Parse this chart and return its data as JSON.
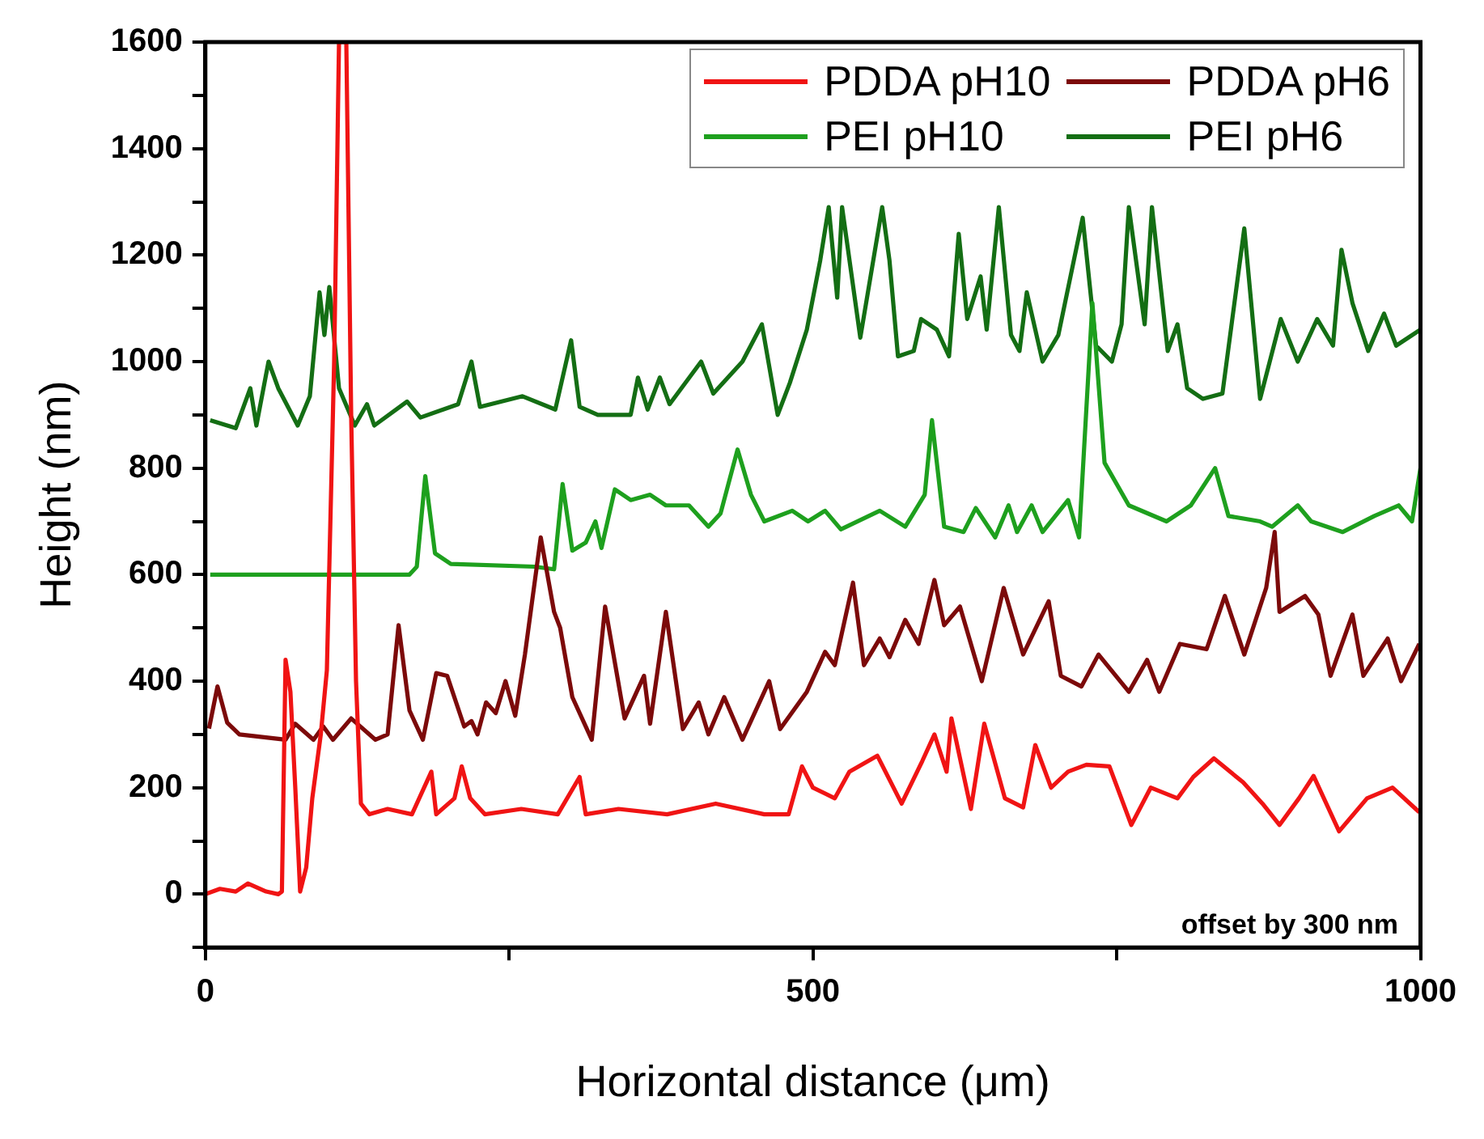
{
  "chart_data": {
    "type": "line",
    "xlabel": "Horizontal distance (μm)",
    "ylabel": "Height (nm)",
    "xlim": [
      0,
      1000
    ],
    "xticks": [
      0,
      {
        "value": 250,
        "label": null
      },
      500,
      {
        "value": 750,
        "label": null
      },
      1000
    ],
    "ylim": [
      -100,
      1600
    ],
    "yticks": [
      {
        "value": -100,
        "label": null
      },
      0,
      {
        "value": 100,
        "label": null
      },
      200,
      {
        "value": 300,
        "label": null
      },
      400,
      {
        "value": 500,
        "label": null
      },
      600,
      {
        "value": 700,
        "label": null
      },
      800,
      {
        "value": 900,
        "label": null
      },
      1000,
      {
        "value": 1100,
        "label": null
      },
      1200,
      {
        "value": 1300,
        "label": null
      },
      1400,
      {
        "value": 1500,
        "label": null
      },
      1600
    ],
    "grid": false,
    "legend": "top right",
    "marker": "none",
    "line_style": "solid",
    "annotations": [
      "offset by 300 nm"
    ],
    "series": [
      {
        "name": "PDDA pH10",
        "color": "#f01414",
        "x": [
          0,
          12,
          25,
          35,
          50,
          60,
          63,
          66,
          70,
          74,
          78,
          83,
          88,
          95,
          100,
          106,
          110,
          116,
          120,
          124,
          128,
          135,
          150,
          170,
          186,
          190,
          205,
          211,
          218,
          230,
          260,
          290,
          308,
          313,
          340,
          380,
          420,
          460,
          480,
          491,
          500,
          518,
          530,
          553,
          573,
          590,
          600,
          610,
          614,
          630,
          641,
          658,
          673,
          683,
          696,
          710,
          725,
          744,
          762,
          778,
          800,
          813,
          830,
          854,
          870,
          884,
          900,
          912,
          933,
          956,
          977,
          999
        ],
        "values": [
          0,
          10,
          5,
          20,
          5,
          0,
          5,
          440,
          380,
          200,
          5,
          50,
          180,
          300,
          420,
          1000,
          1600,
          1600,
          900,
          400,
          170,
          150,
          160,
          150,
          230,
          150,
          180,
          240,
          180,
          150,
          160,
          150,
          220,
          150,
          160,
          150,
          170,
          150,
          150,
          240,
          200,
          180,
          230,
          260,
          170,
          250,
          300,
          230,
          330,
          160,
          320,
          180,
          163,
          280,
          200,
          230,
          243,
          240,
          130,
          200,
          180,
          220,
          255,
          210,
          170,
          130,
          180,
          222,
          118,
          180,
          200,
          154
        ]
      },
      {
        "name": "PDDA pH6",
        "color": "#7c0a0a",
        "x": [
          3,
          10,
          18,
          28,
          66,
          74,
          89,
          97,
          105,
          120,
          140,
          150,
          159,
          168,
          179,
          190,
          199,
          213,
          219,
          224,
          231,
          239,
          247,
          255,
          263,
          276,
          287,
          292,
          302,
          318,
          329,
          345,
          361,
          366,
          379,
          393,
          406,
          414,
          427,
          442,
          464,
          473,
          495,
          510,
          518,
          533,
          542,
          555,
          563,
          576,
          587,
          600,
          608,
          621,
          639,
          657,
          673,
          694,
          704,
          721,
          735,
          760,
          775,
          785,
          802,
          824,
          839,
          855,
          873,
          880,
          884,
          905,
          916,
          926,
          944,
          953,
          973,
          984,
          999
        ],
        "values": [
          311,
          390,
          322,
          300,
          290,
          320,
          290,
          315,
          290,
          330,
          290,
          300,
          505,
          345,
          290,
          415,
          410,
          315,
          325,
          300,
          360,
          340,
          400,
          335,
          450,
          670,
          530,
          500,
          370,
          290,
          540,
          330,
          410,
          320,
          530,
          310,
          360,
          300,
          370,
          290,
          400,
          310,
          380,
          455,
          430,
          585,
          430,
          480,
          445,
          515,
          470,
          590,
          505,
          540,
          400,
          575,
          450,
          550,
          410,
          390,
          450,
          380,
          440,
          380,
          470,
          460,
          560,
          450,
          575,
          680,
          530,
          560,
          525,
          410,
          525,
          410,
          480,
          400,
          470
        ]
      },
      {
        "name": "PEI pH10",
        "color": "#1ea01e",
        "x": [
          4,
          168,
          174,
          181,
          189,
          202,
          271,
          287,
          294,
          302,
          313,
          321,
          326,
          337,
          350,
          366,
          379,
          398,
          414,
          424,
          438,
          449,
          460,
          483,
          496,
          510,
          523,
          555,
          576,
          592,
          598,
          608,
          624,
          634,
          650,
          661,
          668,
          680,
          689,
          710,
          719,
          730,
          740,
          760,
          791,
          811,
          831,
          842,
          868,
          878,
          899,
          910,
          936,
          962,
          982,
          993,
          1000
        ],
        "values": [
          600,
          600,
          615,
          785,
          640,
          620,
          615,
          610,
          770,
          645,
          660,
          700,
          650,
          760,
          740,
          750,
          730,
          730,
          690,
          715,
          835,
          750,
          700,
          720,
          700,
          720,
          685,
          720,
          690,
          750,
          890,
          690,
          680,
          725,
          670,
          730,
          680,
          730,
          680,
          740,
          670,
          1110,
          810,
          730,
          700,
          730,
          800,
          710,
          700,
          690,
          730,
          700,
          680,
          710,
          730,
          700,
          800
        ]
      },
      {
        "name": "PEI pH6",
        "color": "#146e14",
        "x": [
          4,
          25,
          37,
          42,
          52,
          60,
          76,
          86,
          94,
          98,
          102,
          110,
          123,
          133,
          139,
          166,
          177,
          208,
          219,
          226,
          261,
          288,
          301,
          308,
          323,
          350,
          356,
          364,
          374,
          382,
          408,
          418,
          442,
          458,
          471,
          481,
          495,
          506,
          513,
          520,
          524,
          539,
          557,
          563,
          570,
          583,
          589,
          602,
          612,
          620,
          627,
          638,
          643,
          653,
          663,
          670,
          676,
          689,
          702,
          722,
          733,
          746,
          754,
          760,
          773,
          779,
          792,
          800,
          808,
          821,
          837,
          855,
          868,
          885,
          899,
          915,
          928,
          935,
          944,
          957,
          970,
          980,
          1000
        ],
        "values": [
          890,
          875,
          950,
          880,
          1000,
          950,
          880,
          935,
          1130,
          1050,
          1140,
          950,
          880,
          920,
          880,
          925,
          895,
          920,
          1000,
          915,
          935,
          910,
          1040,
          915,
          900,
          900,
          970,
          910,
          970,
          920,
          1000,
          940,
          1000,
          1070,
          900,
          960,
          1060,
          1190,
          1290,
          1120,
          1290,
          1045,
          1290,
          1190,
          1010,
          1020,
          1080,
          1060,
          1010,
          1240,
          1080,
          1160,
          1060,
          1290,
          1050,
          1020,
          1130,
          1000,
          1050,
          1270,
          1030,
          1000,
          1070,
          1290,
          1070,
          1290,
          1020,
          1070,
          950,
          930,
          940,
          1250,
          930,
          1080,
          1000,
          1080,
          1030,
          1210,
          1110,
          1020,
          1090,
          1030,
          1060
        ]
      }
    ]
  }
}
